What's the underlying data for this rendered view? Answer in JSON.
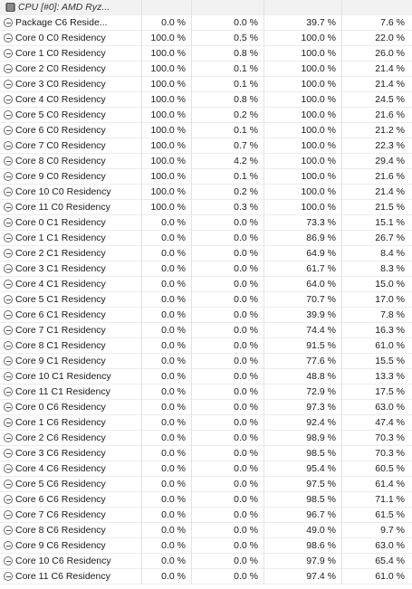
{
  "header": {
    "label": "CPU [#0]: AMD Ryz..."
  },
  "rows": [
    {
      "name": "Package C6 Reside...",
      "v1": "0.0 %",
      "v2": "0.0 %",
      "v3": "39.7 %",
      "v4": "7.6 %"
    },
    {
      "name": "Core 0 C0 Residency",
      "v1": "100.0 %",
      "v2": "0.5 %",
      "v3": "100.0 %",
      "v4": "22.0 %"
    },
    {
      "name": "Core 1 C0 Residency",
      "v1": "100.0 %",
      "v2": "0.8 %",
      "v3": "100.0 %",
      "v4": "26.0 %"
    },
    {
      "name": "Core 2 C0 Residency",
      "v1": "100.0 %",
      "v2": "0.1 %",
      "v3": "100.0 %",
      "v4": "21.4 %"
    },
    {
      "name": "Core 3 C0 Residency",
      "v1": "100.0 %",
      "v2": "0.1 %",
      "v3": "100.0 %",
      "v4": "21.4 %"
    },
    {
      "name": "Core 4 C0 Residency",
      "v1": "100.0 %",
      "v2": "0.8 %",
      "v3": "100.0 %",
      "v4": "24.5 %"
    },
    {
      "name": "Core 5 C0 Residency",
      "v1": "100.0 %",
      "v2": "0.2 %",
      "v3": "100.0 %",
      "v4": "21.6 %"
    },
    {
      "name": "Core 6 C0 Residency",
      "v1": "100.0 %",
      "v2": "0.1 %",
      "v3": "100.0 %",
      "v4": "21.2 %"
    },
    {
      "name": "Core 7 C0 Residency",
      "v1": "100.0 %",
      "v2": "0.7 %",
      "v3": "100.0 %",
      "v4": "22.3 %"
    },
    {
      "name": "Core 8 C0 Residency",
      "v1": "100.0 %",
      "v2": "4.2 %",
      "v3": "100.0 %",
      "v4": "29.4 %"
    },
    {
      "name": "Core 9 C0 Residency",
      "v1": "100.0 %",
      "v2": "0.1 %",
      "v3": "100.0 %",
      "v4": "21.6 %"
    },
    {
      "name": "Core 10 C0 Residency",
      "v1": "100.0 %",
      "v2": "0.2 %",
      "v3": "100.0 %",
      "v4": "21.4 %"
    },
    {
      "name": "Core 11 C0 Residency",
      "v1": "100.0 %",
      "v2": "0.3 %",
      "v3": "100.0 %",
      "v4": "21.5 %"
    },
    {
      "name": "Core 0 C1 Residency",
      "v1": "0.0 %",
      "v2": "0.0 %",
      "v3": "73.3 %",
      "v4": "15.1 %"
    },
    {
      "name": "Core 1 C1 Residency",
      "v1": "0.0 %",
      "v2": "0.0 %",
      "v3": "86.9 %",
      "v4": "26.7 %"
    },
    {
      "name": "Core 2 C1 Residency",
      "v1": "0.0 %",
      "v2": "0.0 %",
      "v3": "64.9 %",
      "v4": "8.4 %"
    },
    {
      "name": "Core 3 C1 Residency",
      "v1": "0.0 %",
      "v2": "0.0 %",
      "v3": "61.7 %",
      "v4": "8.3 %"
    },
    {
      "name": "Core 4 C1 Residency",
      "v1": "0.0 %",
      "v2": "0.0 %",
      "v3": "64.0 %",
      "v4": "15.0 %"
    },
    {
      "name": "Core 5 C1 Residency",
      "v1": "0.0 %",
      "v2": "0.0 %",
      "v3": "70.7 %",
      "v4": "17.0 %"
    },
    {
      "name": "Core 6 C1 Residency",
      "v1": "0.0 %",
      "v2": "0.0 %",
      "v3": "39.9 %",
      "v4": "7.8 %"
    },
    {
      "name": "Core 7 C1 Residency",
      "v1": "0.0 %",
      "v2": "0.0 %",
      "v3": "74.4 %",
      "v4": "16.3 %"
    },
    {
      "name": "Core 8 C1 Residency",
      "v1": "0.0 %",
      "v2": "0.0 %",
      "v3": "91.5 %",
      "v4": "61.0 %"
    },
    {
      "name": "Core 9 C1 Residency",
      "v1": "0.0 %",
      "v2": "0.0 %",
      "v3": "77.6 %",
      "v4": "15.5 %"
    },
    {
      "name": "Core 10 C1 Residency",
      "v1": "0.0 %",
      "v2": "0.0 %",
      "v3": "48.8 %",
      "v4": "13.3 %"
    },
    {
      "name": "Core 11 C1 Residency",
      "v1": "0.0 %",
      "v2": "0.0 %",
      "v3": "72.9 %",
      "v4": "17.5 %"
    },
    {
      "name": "Core 0 C6 Residency",
      "v1": "0.0 %",
      "v2": "0.0 %",
      "v3": "97.3 %",
      "v4": "63.0 %"
    },
    {
      "name": "Core 1 C6 Residency",
      "v1": "0.0 %",
      "v2": "0.0 %",
      "v3": "92.4 %",
      "v4": "47.4 %"
    },
    {
      "name": "Core 2 C6 Residency",
      "v1": "0.0 %",
      "v2": "0.0 %",
      "v3": "98.9 %",
      "v4": "70.3 %"
    },
    {
      "name": "Core 3 C6 Residency",
      "v1": "0.0 %",
      "v2": "0.0 %",
      "v3": "98.5 %",
      "v4": "70.3 %"
    },
    {
      "name": "Core 4 C6 Residency",
      "v1": "0.0 %",
      "v2": "0.0 %",
      "v3": "95.4 %",
      "v4": "60.5 %"
    },
    {
      "name": "Core 5 C6 Residency",
      "v1": "0.0 %",
      "v2": "0.0 %",
      "v3": "97.5 %",
      "v4": "61.4 %"
    },
    {
      "name": "Core 6 C6 Residency",
      "v1": "0.0 %",
      "v2": "0.0 %",
      "v3": "98.5 %",
      "v4": "71.1 %"
    },
    {
      "name": "Core 7 C6 Residency",
      "v1": "0.0 %",
      "v2": "0.0 %",
      "v3": "96.7 %",
      "v4": "61.5 %"
    },
    {
      "name": "Core 8 C6 Residency",
      "v1": "0.0 %",
      "v2": "0.0 %",
      "v3": "49.0 %",
      "v4": "9.7 %"
    },
    {
      "name": "Core 9 C6 Residency",
      "v1": "0.0 %",
      "v2": "0.0 %",
      "v3": "98.6 %",
      "v4": "63.0 %"
    },
    {
      "name": "Core 10 C6 Residency",
      "v1": "0.0 %",
      "v2": "0.0 %",
      "v3": "97.9 %",
      "v4": "65.4 %"
    },
    {
      "name": "Core 11 C6 Residency",
      "v1": "0.0 %",
      "v2": "0.0 %",
      "v3": "97.4 %",
      "v4": "61.0 %"
    }
  ]
}
